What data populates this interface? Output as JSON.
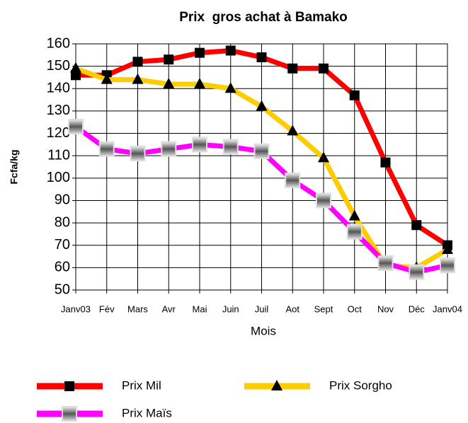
{
  "chart_data": {
    "type": "line",
    "title": "Prix  gros achat à Bamako",
    "x_label": "Mois",
    "y_label": "Fcfa/kg",
    "categories": [
      "Janv03",
      "Fév",
      "Mars",
      "Avr",
      "Mai",
      "Juin",
      "Juil",
      "Aot",
      "Sept",
      "Oct",
      "Nov",
      "Déc",
      "Janv04"
    ],
    "series": [
      {
        "name": "Prix Mil",
        "color": "#ff0000",
        "marker": "square",
        "values": [
          146,
          146,
          152,
          153,
          156,
          157,
          154,
          149,
          149,
          137,
          107,
          79,
          70
        ]
      },
      {
        "name": "Prix Sorgho",
        "color": "#ffcc00",
        "marker": "triangle",
        "values": [
          149,
          144,
          144,
          142,
          142,
          140,
          132,
          121,
          109,
          83,
          61,
          60,
          68
        ]
      },
      {
        "name": "Prix Maïs",
        "color": "#ff00ff",
        "marker": "gray-square",
        "values": [
          123,
          113,
          111,
          113,
          115,
          114,
          112,
          99,
          90,
          76,
          62,
          58,
          61
        ]
      }
    ],
    "ylim": [
      50,
      160
    ],
    "yticks": [
      50,
      60,
      70,
      80,
      90,
      100,
      110,
      120,
      130,
      140,
      150,
      160
    ],
    "grid": true
  }
}
